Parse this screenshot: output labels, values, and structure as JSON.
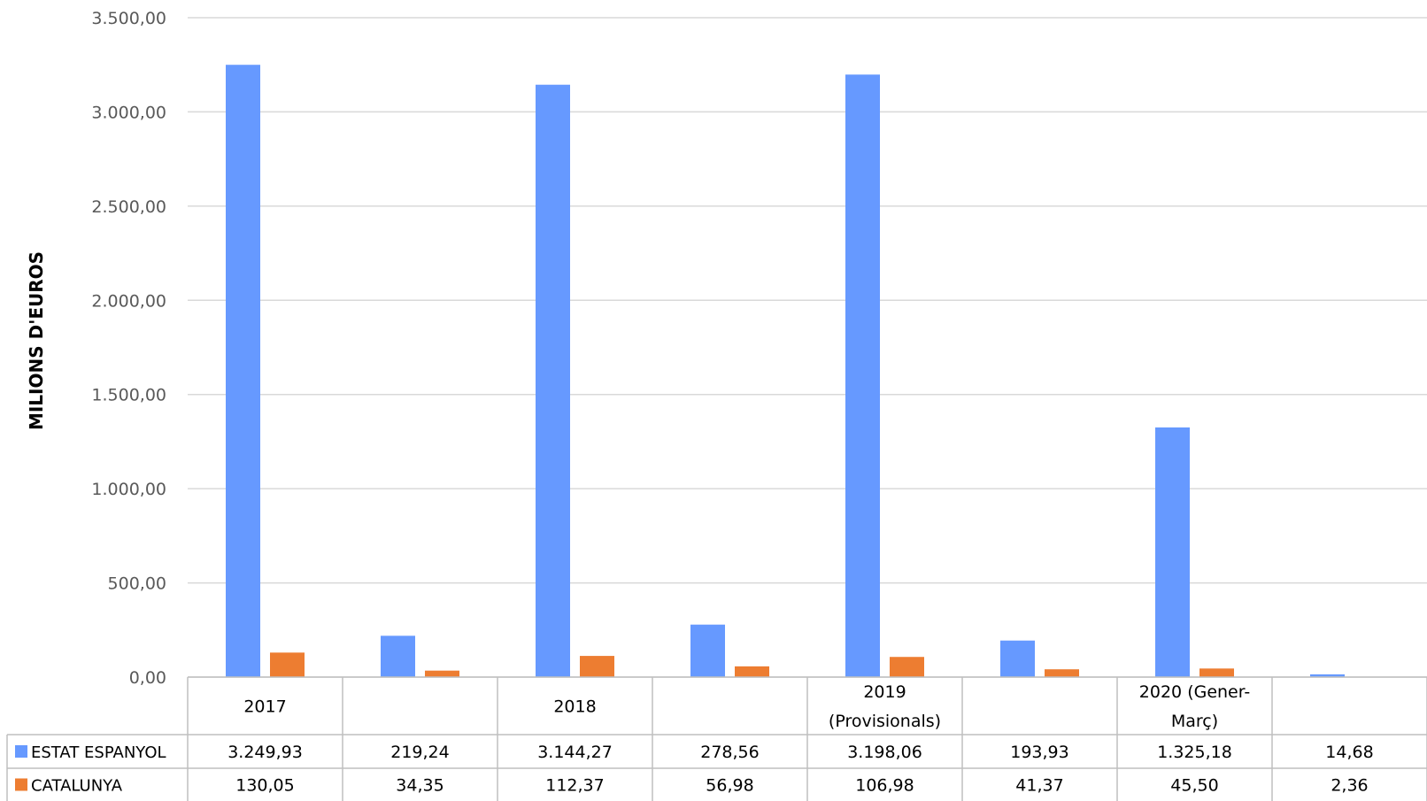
{
  "chart_data": {
    "type": "bar",
    "ylabel": "MILIONS D'EUROS",
    "ylim": [
      0,
      3500
    ],
    "y_ticks": [
      "0,00",
      "500,00",
      "1.000,00",
      "1.500,00",
      "2.000,00",
      "2.500,00",
      "3.000,00",
      "3.500,00"
    ],
    "grid": true,
    "legend": "data-table",
    "categories": [
      [
        "2017"
      ],
      [
        ""
      ],
      [
        "2018"
      ],
      [
        ""
      ],
      [
        "2019",
        "(Provisionals)"
      ],
      [
        ""
      ],
      [
        "2020 (Gener-",
        "Març)"
      ],
      [
        ""
      ]
    ],
    "series": [
      {
        "name": "ESTAT ESPANYOL",
        "color": "#6699ff",
        "values": [
          3249.93,
          219.24,
          3144.27,
          278.56,
          3198.06,
          193.93,
          1325.18,
          14.68
        ],
        "labels": [
          "3.249,93",
          "219,24",
          "3.144,27",
          "278,56",
          "3.198,06",
          "193,93",
          "1.325,18",
          "14,68"
        ]
      },
      {
        "name": "CATALUNYA",
        "color": "#ed7d31",
        "values": [
          130.05,
          34.35,
          112.37,
          56.98,
          106.98,
          41.37,
          45.5,
          2.36
        ],
        "labels": [
          "130,05",
          "34,35",
          "112,37",
          "56,98",
          "106,98",
          "41,37",
          "45,50",
          "2,36"
        ]
      }
    ]
  }
}
